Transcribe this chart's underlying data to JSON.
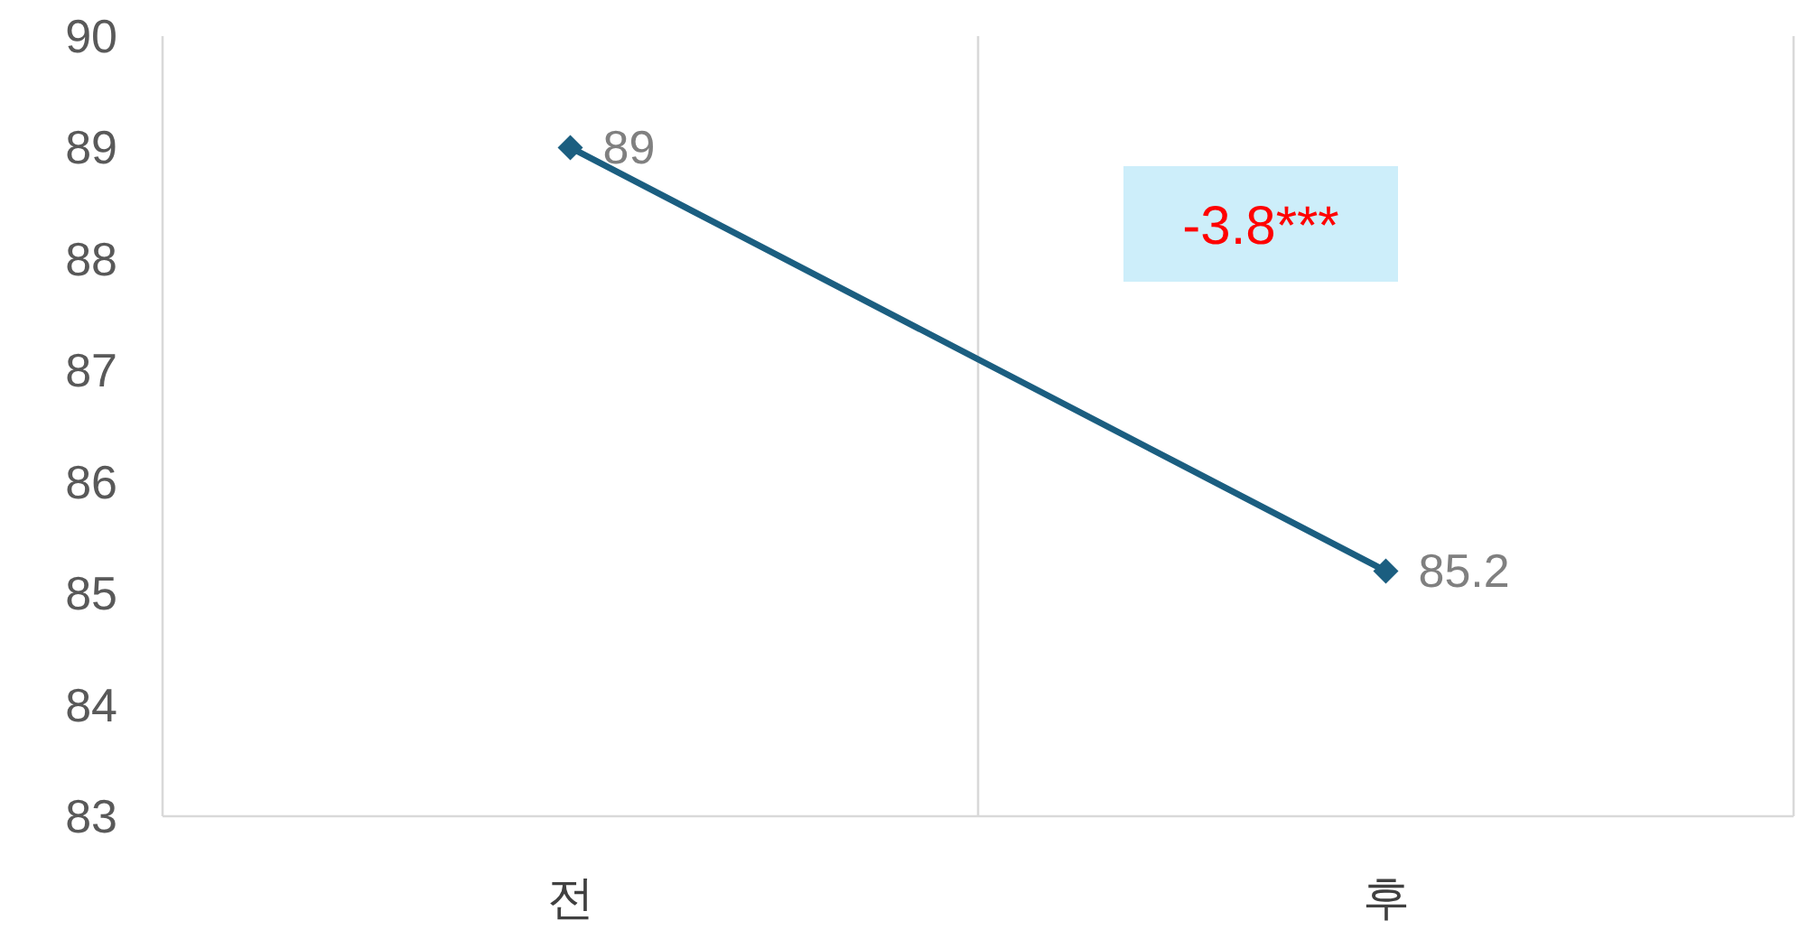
{
  "chart_data": {
    "type": "line",
    "categories": [
      "전",
      "후"
    ],
    "series": [
      {
        "color": "#1b5e80",
        "values": [
          89,
          85.2
        ]
      }
    ],
    "ylim": [
      83,
      90
    ],
    "yticks": [
      83,
      84,
      85,
      86,
      87,
      88,
      89,
      90
    ],
    "grid": "x",
    "marker": "diamond",
    "line_style": "solid",
    "data_labels": true,
    "annotations": [
      "-3.8***"
    ]
  }
}
